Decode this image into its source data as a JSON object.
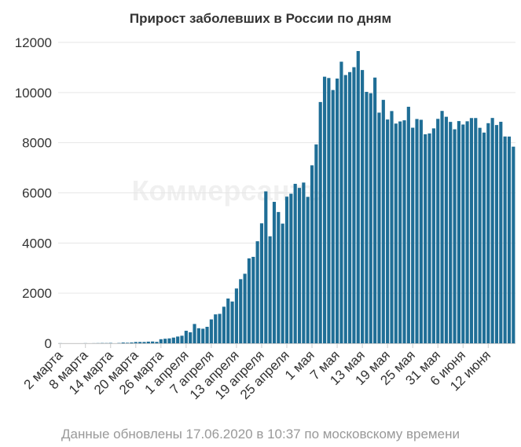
{
  "chart_data": {
    "type": "bar",
    "title": "Прирост заболевших в России по дням",
    "xlabel": "",
    "ylabel": "",
    "ylim": [
      0,
      12000
    ],
    "yticks": [
      0,
      2000,
      4000,
      6000,
      8000,
      10000,
      12000
    ],
    "grid": true,
    "bar_color": "#1f6e96",
    "watermark": "Коммерсантъ",
    "x_tick_labels": [
      "2 марта",
      "8 марта",
      "14 марта",
      "20 марта",
      "26 марта",
      "1 апреля",
      "7 апреля",
      "13 апреля",
      "19 апреля",
      "25 апреля",
      "1 мая",
      "7 мая",
      "13 мая",
      "19 мая",
      "25 мая",
      "31 мая",
      "6 июня",
      "12 июня"
    ],
    "x_tick_every": 6,
    "values": [
      3,
      0,
      0,
      0,
      0,
      0,
      4,
      0,
      3,
      6,
      10,
      8,
      14,
      0,
      11,
      30,
      22,
      33,
      52,
      54,
      53,
      66,
      71,
      57,
      163,
      182,
      196,
      228,
      270,
      302,
      500,
      440,
      771,
      601,
      582,
      658,
      954,
      1154,
      1175,
      1459,
      1786,
      1667,
      2186,
      2558,
      2774,
      3388,
      3448,
      4070,
      4785,
      6060,
      4268,
      5642,
      5236,
      4774,
      5849,
      5966,
      6361,
      6198,
      6411,
      5841,
      7099,
      7933,
      9623,
      10633,
      10581,
      10102,
      10559,
      11231,
      10699,
      10817,
      11012,
      11656,
      10899,
      10028,
      9974,
      10598,
      9200,
      9709,
      8926,
      9263,
      8764,
      8849,
      8894,
      9434,
      8599,
      8946,
      8915,
      8338,
      8371,
      8572,
      8952,
      9268,
      9035,
      8831,
      8536,
      8863,
      8726,
      8855,
      8984,
      8985,
      8595,
      8404,
      8779,
      8987,
      8706,
      8835,
      8248,
      8246,
      7843
    ]
  },
  "footer": {
    "text": "Данные обновлены 17.06.2020 в 10:37 по московскому времени"
  }
}
